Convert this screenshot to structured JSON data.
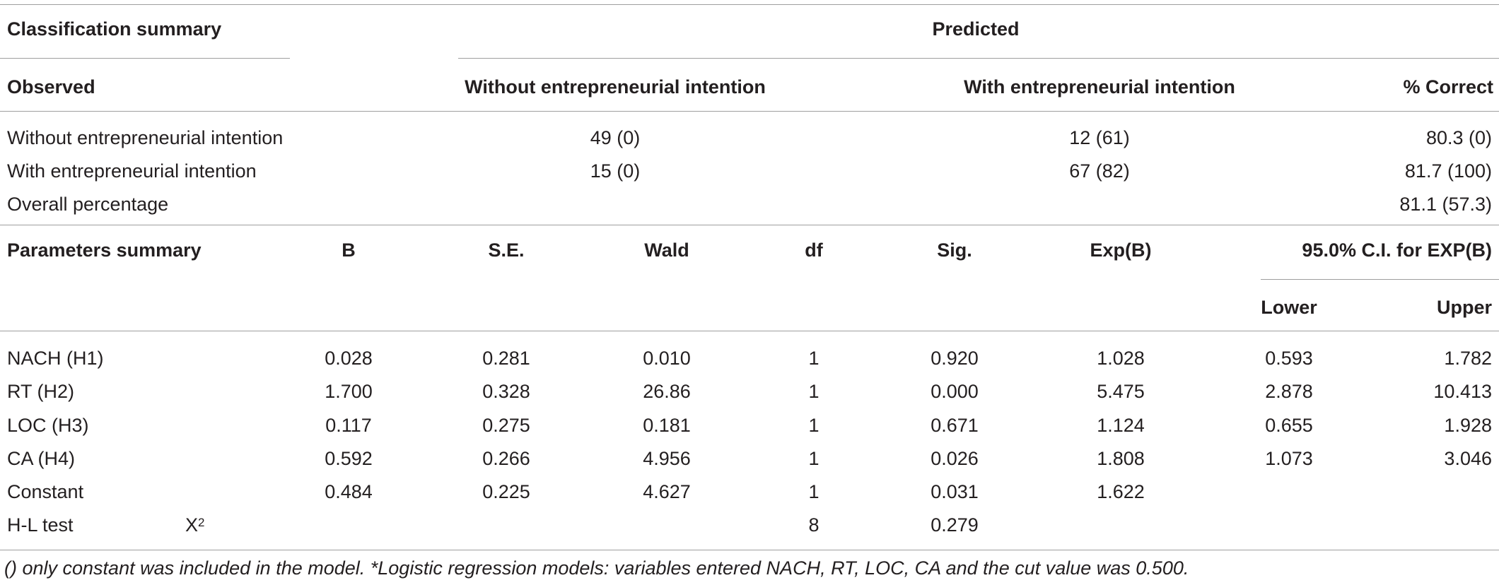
{
  "classification": {
    "title": "Classification summary",
    "predicted_label": "Predicted",
    "observed_label": "Observed",
    "col_without": "Without entrepreneurial intention",
    "col_with": "With entrepreneurial intention",
    "col_correct": "% Correct",
    "rows": [
      {
        "label": "Without entrepreneurial intention",
        "without": "49 (0)",
        "with": "12 (61)",
        "correct": "80.3 (0)"
      },
      {
        "label": "With entrepreneurial intention",
        "without": "15 (0)",
        "with": "67 (82)",
        "correct": "81.7 (100)"
      },
      {
        "label": "Overall percentage",
        "without": "",
        "with": "",
        "correct": "81.1 (57.3)"
      }
    ]
  },
  "parameters": {
    "title": "Parameters summary",
    "headers": {
      "b": "B",
      "se": "S.E.",
      "wald": "Wald",
      "df": "df",
      "sig": "Sig.",
      "expb": "Exp(B)",
      "ci": "95.0% C.I. for EXP(B)",
      "lower": "Lower",
      "upper": "Upper"
    },
    "rows": [
      {
        "label": "NACH (H1)",
        "b": "0.028",
        "se": "0.281",
        "wald": "0.010",
        "df": "1",
        "sig": "0.920",
        "expb": "1.028",
        "lower": "0.593",
        "upper": "1.782"
      },
      {
        "label": "RT (H2)",
        "b": "1.700",
        "se": "0.328",
        "wald": "26.86",
        "df": "1",
        "sig": "0.000",
        "expb": "5.475",
        "lower": "2.878",
        "upper": "10.413"
      },
      {
        "label": "LOC (H3)",
        "b": "0.117",
        "se": "0.275",
        "wald": "0.181",
        "df": "1",
        "sig": "0.671",
        "expb": "1.124",
        "lower": "0.655",
        "upper": "1.928"
      },
      {
        "label": "CA (H4)",
        "b": "0.592",
        "se": "0.266",
        "wald": "4.956",
        "df": "1",
        "sig": "0.026",
        "expb": "1.808",
        "lower": "1.073",
        "upper": "3.046"
      },
      {
        "label": "Constant",
        "b": "0.484",
        "se": "0.225",
        "wald": "4.627",
        "df": "1",
        "sig": "0.031",
        "expb": "1.622",
        "lower": "",
        "upper": ""
      }
    ],
    "hl": {
      "label": "H-L test",
      "stat": "X",
      "stat_sup": "2",
      "df": "8",
      "sig": "0.279"
    }
  },
  "footnote": "() only constant was included in the model. *Logistic regression models: variables entered NACH, RT, LOC, CA and the cut value was 0.500."
}
